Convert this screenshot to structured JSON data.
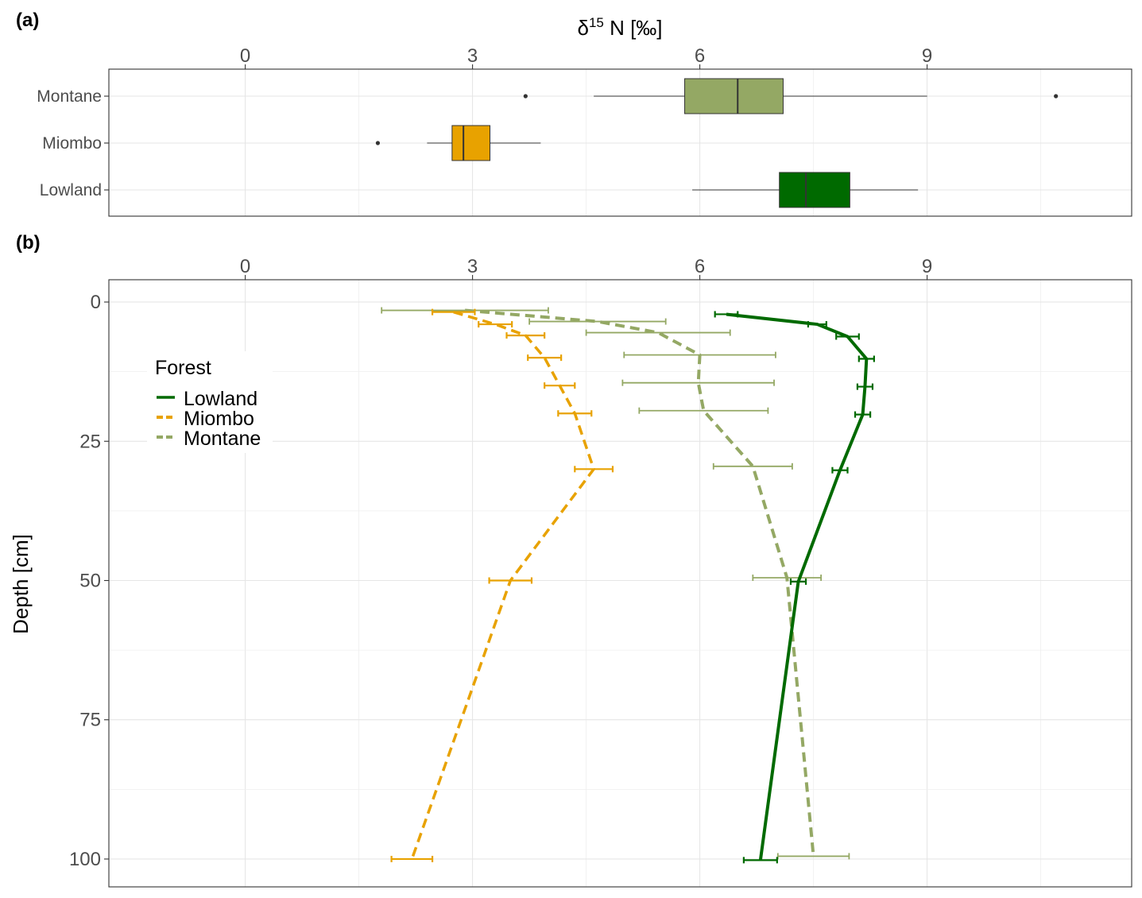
{
  "chart_data": [
    {
      "panel": "(a)",
      "type": "boxplot",
      "title": "δ15 N [‰]",
      "xlabel_main": "δ",
      "xlabel_sup": "15",
      "xlabel_rest": " N [‰]",
      "xlim": [
        -1.8,
        11.7
      ],
      "xticks": [
        0,
        3,
        6,
        9
      ],
      "xtick_labels": [
        "0",
        "3",
        "6",
        "9"
      ],
      "categories": [
        "Montane",
        "Miombo",
        "Lowland"
      ],
      "boxes": [
        {
          "name": "Montane",
          "color": "#94a864",
          "lower_whisker": 4.6,
          "q1": 5.8,
          "median": 6.5,
          "q3": 7.1,
          "upper_whisker": 9.0,
          "outliers": [
            3.7,
            10.7
          ]
        },
        {
          "name": "Miombo",
          "color": "#e8a200",
          "lower_whisker": 2.4,
          "q1": 2.73,
          "median": 2.88,
          "q3": 3.23,
          "upper_whisker": 3.9,
          "outliers": [
            1.75
          ]
        },
        {
          "name": "Lowland",
          "color": "#006a00",
          "lower_whisker": 5.9,
          "q1": 7.05,
          "median": 7.4,
          "q3": 7.98,
          "upper_whisker": 8.88,
          "outliers": []
        }
      ]
    },
    {
      "panel": "(b)",
      "type": "line",
      "xlabel": "",
      "ylabel": "Depth [cm]",
      "xlim": [
        -1.8,
        11.7
      ],
      "xticks": [
        0,
        3,
        6,
        9
      ],
      "xtick_labels": [
        "0",
        "3",
        "6",
        "9"
      ],
      "ylim": [
        -4,
        105
      ],
      "yticks": [
        0,
        25,
        50,
        75,
        100
      ],
      "ytick_labels": [
        "0",
        "25",
        "50",
        "75",
        "100"
      ],
      "legend_title": "Forest",
      "legend_position": "left",
      "series": [
        {
          "name": "Lowland",
          "color": "#006a00",
          "dash": "solid",
          "points": [
            {
              "x": 6.35,
              "y": 2.2,
              "err": 0.15
            },
            {
              "x": 7.55,
              "y": 4,
              "err": 0.12
            },
            {
              "x": 7.95,
              "y": 6.2,
              "err": 0.15
            },
            {
              "x": 8.2,
              "y": 10.2,
              "err": 0.1
            },
            {
              "x": 8.18,
              "y": 15.2,
              "err": 0.1
            },
            {
              "x": 8.15,
              "y": 20.2,
              "err": 0.1
            },
            {
              "x": 7.85,
              "y": 30.2,
              "err": 0.1
            },
            {
              "x": 7.3,
              "y": 50.2,
              "err": 0.1
            },
            {
              "x": 6.8,
              "y": 100.2,
              "err": 0.22
            }
          ]
        },
        {
          "name": "Miombo",
          "color": "#e8a200",
          "dash": "dashed",
          "points": [
            {
              "x": 2.75,
              "y": 1.8,
              "err": 0.28
            },
            {
              "x": 3.3,
              "y": 4,
              "err": 0.22
            },
            {
              "x": 3.7,
              "y": 6,
              "err": 0.25
            },
            {
              "x": 3.95,
              "y": 10,
              "err": 0.22
            },
            {
              "x": 4.15,
              "y": 15,
              "err": 0.2
            },
            {
              "x": 4.35,
              "y": 20,
              "err": 0.22
            },
            {
              "x": 4.6,
              "y": 30,
              "err": 0.25
            },
            {
              "x": 3.5,
              "y": 50,
              "err": 0.28
            },
            {
              "x": 2.2,
              "y": 100,
              "err": 0.27
            }
          ]
        },
        {
          "name": "Montane",
          "color": "#94a864",
          "dash": "dashed",
          "points": [
            {
              "x": 2.9,
              "y": 1.5,
              "err": 1.1
            },
            {
              "x": 4.65,
              "y": 3.5,
              "err": 0.9
            },
            {
              "x": 5.45,
              "y": 5.5,
              "err": 0.95
            },
            {
              "x": 6.0,
              "y": 9.5,
              "err": 1.0
            },
            {
              "x": 5.98,
              "y": 14.5,
              "err": 1.0
            },
            {
              "x": 6.05,
              "y": 19.5,
              "err": 0.85
            },
            {
              "x": 6.7,
              "y": 29.5,
              "err": 0.52
            },
            {
              "x": 7.15,
              "y": 49.5,
              "err": 0.45
            },
            {
              "x": 7.5,
              "y": 99.5,
              "err": 0.47
            }
          ]
        }
      ]
    }
  ]
}
